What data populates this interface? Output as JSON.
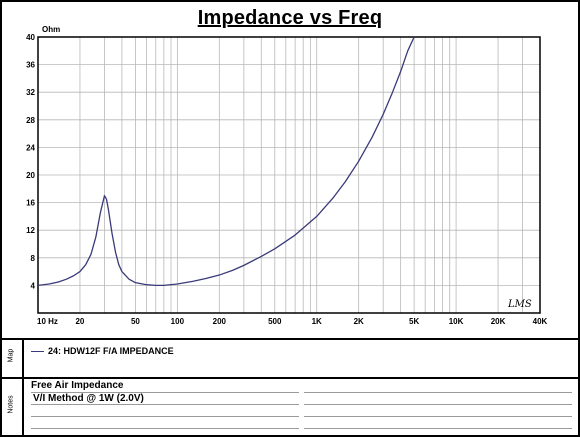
{
  "chart_data": {
    "type": "line",
    "title": "Impedance vs Freq",
    "ylabel": "Ohm",
    "x_scale": "log",
    "xlim": [
      10,
      40000
    ],
    "ylim": [
      0,
      40
    ],
    "y_ticks": [
      4,
      8,
      12,
      16,
      20,
      24,
      28,
      32,
      36,
      40
    ],
    "x_ticks": [
      {
        "value": 10,
        "label": "10 Hz"
      },
      {
        "value": 20,
        "label": "20"
      },
      {
        "value": 50,
        "label": "50"
      },
      {
        "value": 100,
        "label": "100"
      },
      {
        "value": 200,
        "label": "200"
      },
      {
        "value": 500,
        "label": "500"
      },
      {
        "value": 1000,
        "label": "1K"
      },
      {
        "value": 2000,
        "label": "2K"
      },
      {
        "value": 5000,
        "label": "5K"
      },
      {
        "value": 10000,
        "label": "10K"
      },
      {
        "value": 20000,
        "label": "20K"
      },
      {
        "value": 40000,
        "label": "40K"
      }
    ],
    "grid": true,
    "series": [
      {
        "name": "24: HDW12F F/A  IMPEDANCE",
        "color": "#3a3a7a",
        "points": [
          [
            10,
            4.0
          ],
          [
            12,
            4.2
          ],
          [
            14,
            4.5
          ],
          [
            16,
            4.9
          ],
          [
            18,
            5.4
          ],
          [
            20,
            6.0
          ],
          [
            22,
            7.0
          ],
          [
            24,
            8.5
          ],
          [
            26,
            11.0
          ],
          [
            28,
            14.5
          ],
          [
            30,
            17.0
          ],
          [
            31,
            16.5
          ],
          [
            32,
            15.0
          ],
          [
            34,
            11.5
          ],
          [
            36,
            8.8
          ],
          [
            38,
            7.0
          ],
          [
            40,
            6.0
          ],
          [
            45,
            4.9
          ],
          [
            50,
            4.4
          ],
          [
            60,
            4.1
          ],
          [
            70,
            4.0
          ],
          [
            80,
            4.0
          ],
          [
            100,
            4.2
          ],
          [
            130,
            4.6
          ],
          [
            160,
            5.0
          ],
          [
            200,
            5.5
          ],
          [
            250,
            6.2
          ],
          [
            300,
            6.9
          ],
          [
            400,
            8.2
          ],
          [
            500,
            9.3
          ],
          [
            700,
            11.3
          ],
          [
            1000,
            14.0
          ],
          [
            1300,
            16.6
          ],
          [
            1600,
            19.0
          ],
          [
            2000,
            22.0
          ],
          [
            2500,
            25.5
          ],
          [
            3000,
            28.8
          ],
          [
            3500,
            32.0
          ],
          [
            4000,
            35.0
          ],
          [
            4500,
            38.0
          ],
          [
            5000,
            40.0
          ]
        ]
      }
    ]
  },
  "legend_label": "24: HDW12F F/A  IMPEDANCE",
  "side_labels": {
    "map": "Map",
    "notes": "Notes"
  },
  "notes": [
    "Free Air Impedance",
    "V/I Method @ 1W (2.0V)"
  ],
  "signature": "LMS"
}
